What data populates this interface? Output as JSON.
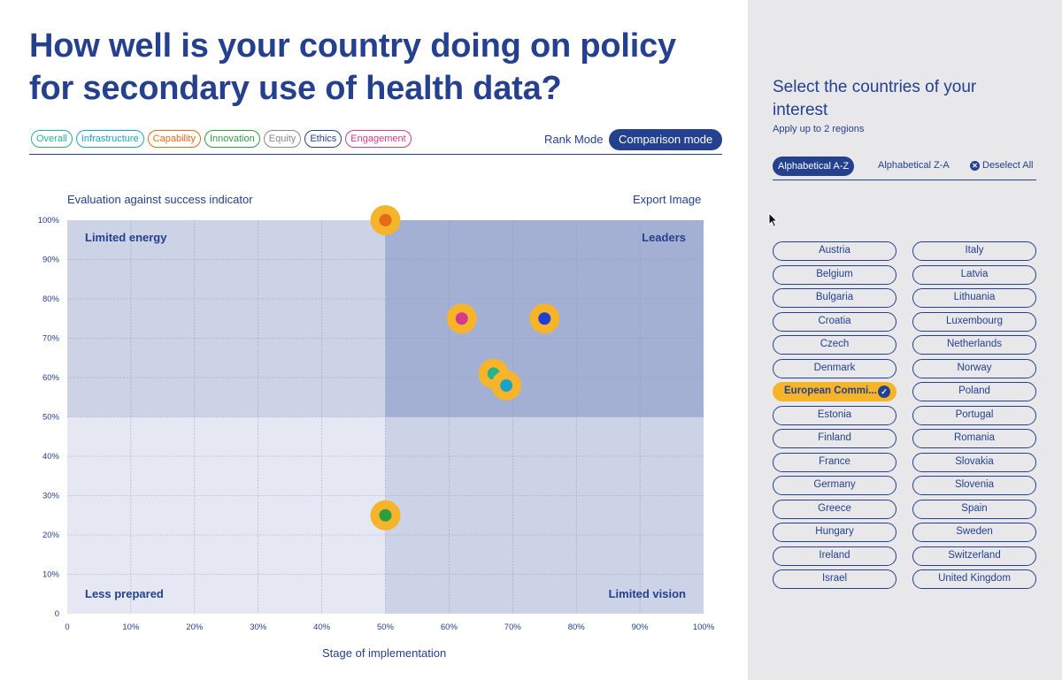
{
  "title": "How well is your country doing on policy for secondary use of health data?",
  "filters": [
    {
      "label": "Overall",
      "color": "#27b38a"
    },
    {
      "label": "Infrastructure",
      "color": "#1aa3c8"
    },
    {
      "label": "Capability",
      "color": "#e46b17"
    },
    {
      "label": "Innovation",
      "color": "#2f9e3f"
    },
    {
      "label": "Equity",
      "color": "#888888"
    },
    {
      "label": "Ethics",
      "color": "#24408e"
    },
    {
      "label": "Engagement",
      "color": "#d23a8e"
    }
  ],
  "modes": {
    "rank": "Rank Mode",
    "comparison": "Comparison mode"
  },
  "chart_header": {
    "left": "Evaluation against success indicator",
    "export": "Export Image"
  },
  "chart_data": {
    "type": "scatter",
    "xlabel": "Stage of implementation",
    "ylabel": "",
    "xlim": [
      0,
      100
    ],
    "ylim": [
      0,
      100
    ],
    "x_ticks": [
      "0",
      "10%",
      "20%",
      "30%",
      "40%",
      "50%",
      "60%",
      "70%",
      "80%",
      "90%",
      "100%"
    ],
    "y_ticks": [
      "0",
      "10%",
      "20%",
      "30%",
      "40%",
      "50%",
      "60%",
      "70%",
      "80%",
      "90%",
      "100%"
    ],
    "grid": true,
    "quadrants": {
      "top_left": "Limited energy",
      "top_right": "Leaders",
      "bottom_left": "Less prepared",
      "bottom_right": "Limited vision"
    },
    "halo_color": "#f6b42b",
    "points": [
      {
        "x": 50,
        "y": 100,
        "color": "#e46b17"
      },
      {
        "x": 62,
        "y": 75,
        "color": "#d23a8e"
      },
      {
        "x": 75,
        "y": 75,
        "color": "#1f3fd0"
      },
      {
        "x": 67,
        "y": 61,
        "color": "#27b38a"
      },
      {
        "x": 69,
        "y": 58,
        "color": "#1aa3c8"
      },
      {
        "x": 50,
        "y": 25,
        "color": "#2f9e3f"
      }
    ]
  },
  "sidebar": {
    "title": "Select the countries of your interest",
    "subtitle": "Apply up to 2 regions",
    "sort_az": "Alphabetical A-Z",
    "sort_za": "Alphabetical Z-A",
    "deselect": "Deselect All",
    "countries_left": [
      "Austria",
      "Belgium",
      "Bulgaria",
      "Croatia",
      "Czech",
      "Denmark",
      "European Commi...",
      "Estonia",
      "Finland",
      "France",
      "Germany",
      "Greece",
      "Hungary",
      "Ireland",
      "Israel"
    ],
    "countries_right": [
      "Italy",
      "Latvia",
      "Lithuania",
      "Luxembourg",
      "Netherlands",
      "Norway",
      "Poland",
      "Portugal",
      "Romania",
      "Slovakia",
      "Slovenia",
      "Spain",
      "Sweden",
      "Switzerland",
      "United Kingdom"
    ],
    "selected": "European Commi..."
  }
}
